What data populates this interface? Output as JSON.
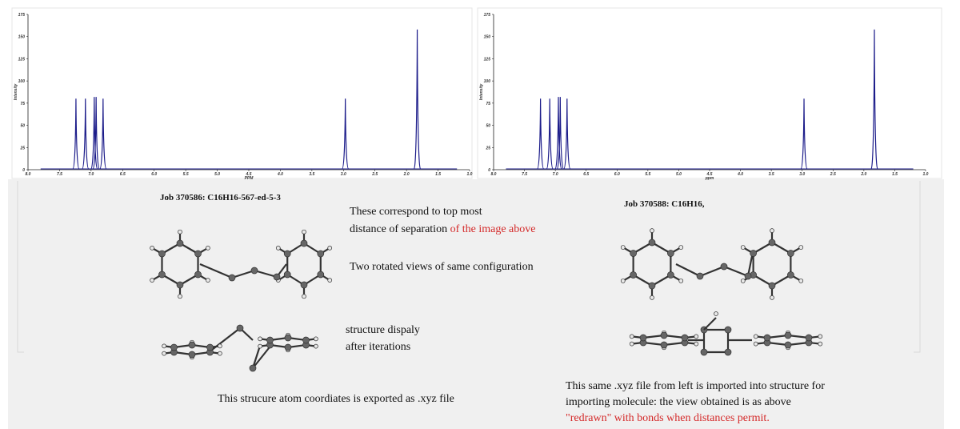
{
  "chart_data": [
    {
      "type": "spectrum",
      "x_label": "PPM",
      "y_label": "Intensity",
      "color": "#1c1c8a",
      "x": [
        7.24,
        7.09,
        6.95,
        6.92,
        6.81,
        2.97,
        1.83
      ],
      "values": [
        80,
        80,
        82,
        82,
        80,
        80,
        158
      ],
      "xlim": [
        8,
        1
      ],
      "ylim": [
        0,
        175
      ],
      "xticks": [
        {
          "value": 8,
          "label": "8.0"
        },
        7.5,
        {
          "value": 7,
          "label": "7.0"
        },
        6.5,
        {
          "value": 6,
          "label": "6.0"
        },
        5.5,
        {
          "value": 5,
          "label": "5.0"
        },
        4.5,
        {
          "value": 4,
          "label": "4.0"
        },
        3.5,
        {
          "value": 3,
          "label": "3.0"
        },
        2.5,
        {
          "value": 2,
          "label": "2.0"
        },
        1.5,
        {
          "value": 1,
          "label": "1.0"
        }
      ],
      "yticks": [
        0,
        25,
        50,
        75,
        100,
        125,
        150,
        175
      ]
    },
    {
      "type": "spectrum",
      "x_label": "ppm",
      "y_label": "Intensity",
      "color": "#1c1c8a",
      "x": [
        7.24,
        7.09,
        6.95,
        6.92,
        6.81,
        2.97,
        1.83
      ],
      "values": [
        80,
        80,
        82,
        82,
        80,
        80,
        158
      ],
      "xlim": [
        8,
        1
      ],
      "ylim": [
        0,
        175
      ],
      "xticks": [
        {
          "value": 8,
          "label": "8.0"
        },
        7.5,
        {
          "value": 7,
          "label": "7.0"
        },
        6.5,
        {
          "value": 6,
          "label": "6.0"
        },
        5.5,
        {
          "value": 5,
          "label": "5.0"
        },
        4.5,
        {
          "value": 4,
          "label": "4.0"
        },
        3.5,
        {
          "value": 3,
          "label": "3.0"
        },
        2.5,
        {
          "value": 2,
          "label": "2.0"
        },
        1.5,
        {
          "value": 1,
          "label": "1.0"
        }
      ],
      "yticks": [
        0,
        25,
        50,
        75,
        100,
        125,
        150,
        175
      ]
    }
  ],
  "annotations": {
    "left_job": "Job 370586: C16H16-567-ed-5-3",
    "right_job": "Job 370588: C16H16,",
    "center_line1": "These correspond to top most",
    "center_line2": "distance of separation",
    "center_line2_red": "of the image above",
    "rotated_views": "Two rotated views of same configuration",
    "iter_line1": "structure dispaly",
    "iter_line2": "after iterations",
    "exported": "This strucure atom coordiates is exported as .xyz file",
    "right_line1": "This same .xyz file from left is imported into structure for",
    "right_line2": "importing molecule: the view obtained is as above",
    "right_line3": "\"redrawn\" with bonds when distances permit."
  }
}
